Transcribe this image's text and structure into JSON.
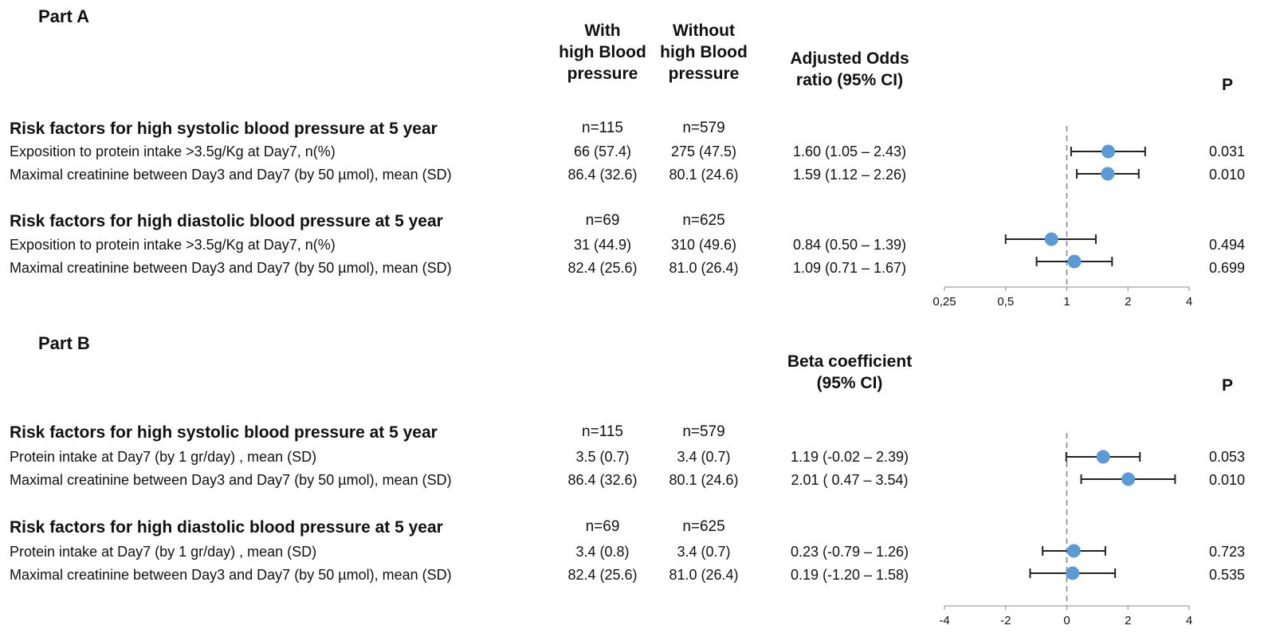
{
  "headers": {
    "with_hbp": [
      "With",
      "high Blood",
      "pressure"
    ],
    "without_hbp": [
      "Without",
      "high Blood",
      "pressure"
    ]
  },
  "parts": [
    {
      "title": "Part A",
      "effect_header": [
        "Adjusted Odds",
        "ratio (95% CI)"
      ],
      "p_header": "P",
      "groups": [
        {
          "title": "Risk factors for high systolic blood pressure at 5 year",
          "n_with": "n=115",
          "n_without": "n=579",
          "rows": [
            {
              "label": "Exposition to protein intake >3.5g/Kg at Day7, n(%)",
              "with": "66 (57.4)",
              "without": "275 (47.5)",
              "effect": "1.60 (1.05 – 2.43)",
              "p": "0.031"
            },
            {
              "label": "Maximal creatinine between Day3 and Day7 (by 50 µmol), mean (SD)",
              "with": "86.4 (32.6)",
              "without": "80.1 (24.6)",
              "effect": "1.59 (1.12 – 2.26)",
              "p": "0.010"
            }
          ]
        },
        {
          "title": "Risk factors for high diastolic blood pressure at 5 year",
          "n_with": "n=69",
          "n_without": "n=625",
          "rows": [
            {
              "label": "Exposition to protein intake >3.5g/Kg at Day7, n(%)",
              "with": "31 (44.9)",
              "without": "310 (49.6)",
              "effect": "0.84 (0.50 – 1.39)",
              "p": "0.494"
            },
            {
              "label": "Maximal creatinine between Day3 and Day7 (by 50 µmol), mean (SD)",
              "with": "82.4 (25.6)",
              "without": "81.0 (26.4)",
              "effect": "1.09 (0.71 – 1.67)",
              "p": "0.699"
            }
          ]
        }
      ]
    },
    {
      "title": "Part B",
      "effect_header": [
        "Beta coefficient",
        "(95% CI)"
      ],
      "p_header": "P",
      "groups": [
        {
          "title": "Risk factors for high systolic blood pressure at 5 year",
          "n_with": "n=115",
          "n_without": "n=579",
          "rows": [
            {
              "label": "Protein intake at Day7 (by 1 gr/day) , mean (SD)",
              "with": "3.5 (0.7)",
              "without": "3.4 (0.7)",
              "effect": "1.19 (-0.02 – 2.39)",
              "p": "0.053"
            },
            {
              "label": "Maximal creatinine between Day3 and Day7 (by 50 µmol), mean (SD)",
              "with": "86.4 (32.6)",
              "without": "80.1 (24.6)",
              "effect": "2.01 ( 0.47 – 3.54)",
              "p": "0.010"
            }
          ]
        },
        {
          "title": "Risk factors for high diastolic blood pressure at 5 year",
          "n_with": "n=69",
          "n_without": "n=625",
          "rows": [
            {
              "label": "Protein intake at Day7 (by 1 gr/day) , mean (SD)",
              "with": "3.4 (0.8)",
              "without": "3.4 (0.7)",
              "effect": "0.23 (-0.79 – 1.26)",
              "p": "0.723"
            },
            {
              "label": "Maximal creatinine between Day3 and Day7 (by 50 µmol), mean (SD)",
              "with": "82.4 (25.6)",
              "without": "81.0 (26.4)",
              "effect": "0.19 (-1.20 – 1.58)",
              "p": "0.535"
            }
          ]
        }
      ]
    }
  ],
  "chart_data": [
    {
      "type": "scatter",
      "scale": "log2",
      "reference_line": 1,
      "xlim": [
        0.25,
        4
      ],
      "ticks": [
        0.25,
        0.5,
        1,
        2,
        4
      ],
      "tick_labels": [
        "0,25",
        "0,5",
        "1",
        "2",
        "4"
      ],
      "points": [
        {
          "value": 1.6,
          "low": 1.05,
          "high": 2.43
        },
        {
          "value": 1.59,
          "low": 1.12,
          "high": 2.26
        },
        {
          "value": 0.84,
          "low": 0.5,
          "high": 1.39
        },
        {
          "value": 1.09,
          "low": 0.71,
          "high": 1.67
        }
      ],
      "marker_color": "#5b9bd5"
    },
    {
      "type": "scatter",
      "scale": "linear",
      "reference_line": 0,
      "xlim": [
        -4,
        4
      ],
      "ticks": [
        -4,
        -2,
        0,
        2,
        4
      ],
      "tick_labels": [
        "-4",
        "-2",
        "0",
        "2",
        "4"
      ],
      "points": [
        {
          "value": 1.19,
          "low": -0.02,
          "high": 2.39
        },
        {
          "value": 2.01,
          "low": 0.47,
          "high": 3.54
        },
        {
          "value": 0.23,
          "low": -0.79,
          "high": 1.26
        },
        {
          "value": 0.19,
          "low": -1.2,
          "high": 1.58
        }
      ],
      "marker_color": "#5b9bd5"
    }
  ]
}
